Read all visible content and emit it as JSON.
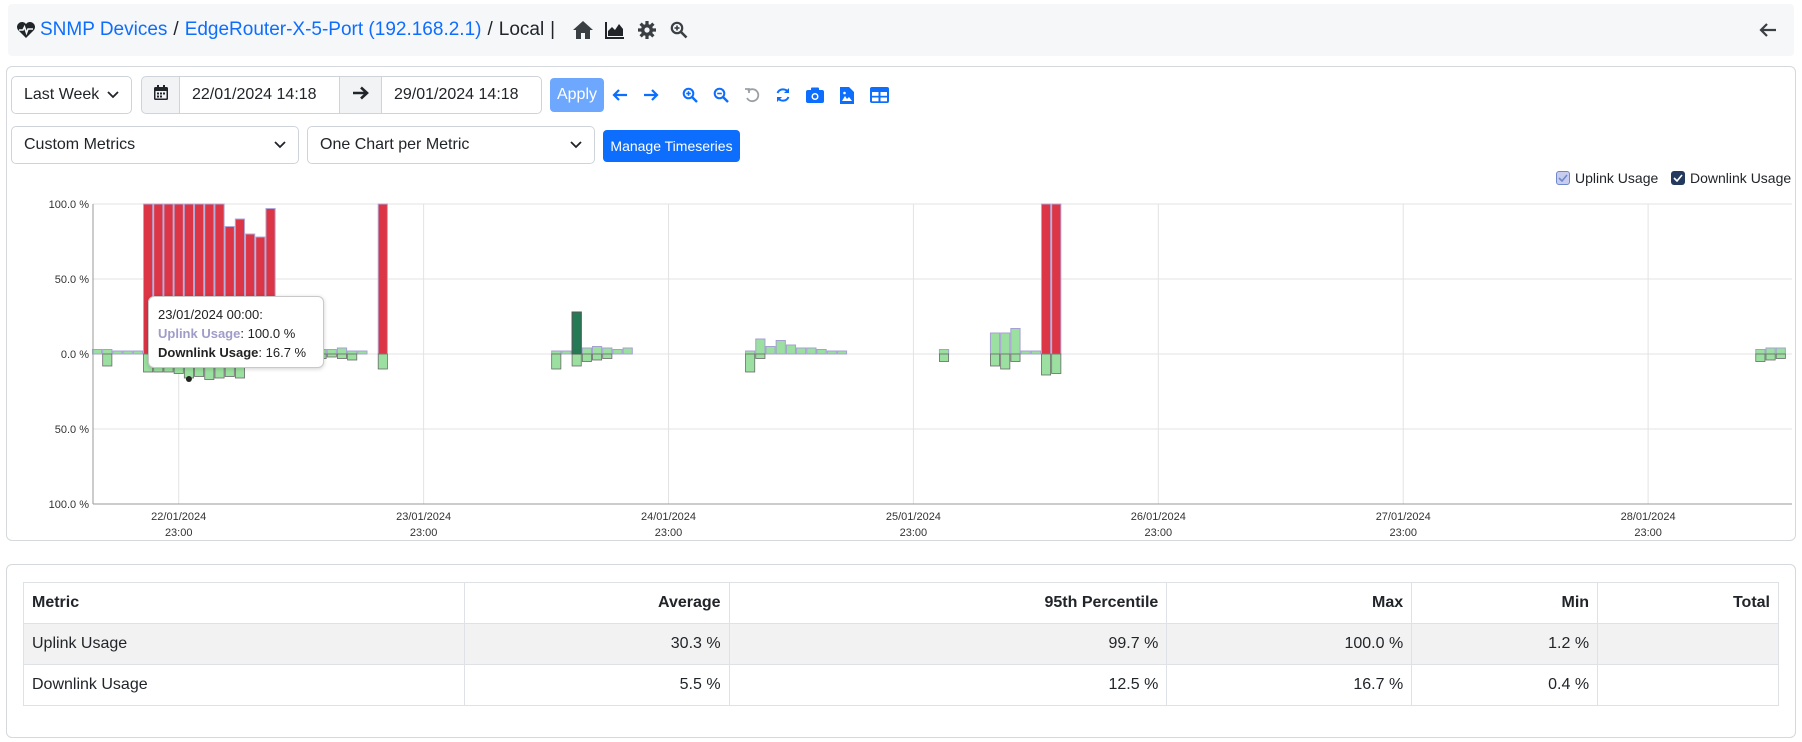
{
  "breadcrumb": {
    "root": "SNMP Devices",
    "device": "EdgeRouter-X-5-Port (192.168.2.1)",
    "interface": "Local",
    "sep": "/",
    "bar": "|"
  },
  "toolbar": {
    "range_preset": "Last Week",
    "start": "22/01/2024 14:18",
    "end": "29/01/2024 14:18",
    "apply_label": "Apply",
    "metrics_select": "Custom Metrics",
    "layout_select": "One Chart per Metric",
    "manage_label": "Manage Timeseries"
  },
  "colors": {
    "link": "#0d6efd",
    "uplink_bar": "#dc3545",
    "uplink_series": "#a4a1d2",
    "downlink_bar": "#9be0a0",
    "downlink_dark": "#237a55",
    "apply": "#6ea8fe"
  },
  "legend": {
    "uplink": "Uplink Usage",
    "downlink": "Downlink Usage"
  },
  "tooltip": {
    "time": "23/01/2024 00:00:",
    "uplink_name": "Uplink Usage",
    "uplink_value": ": 100.0 %",
    "downlink_name": "Downlink Usage",
    "downlink_value": ": 16.7 %"
  },
  "chart_data": {
    "type": "bar",
    "y_ticks": [
      "100.0 %",
      "50.0 %",
      "0.0 %",
      "50.0 %",
      "100.0 %"
    ],
    "x_ticks": [
      {
        "date": "22/01/2024",
        "time": "23:00"
      },
      {
        "date": "23/01/2024",
        "time": "23:00"
      },
      {
        "date": "24/01/2024",
        "time": "23:00"
      },
      {
        "date": "25/01/2024",
        "time": "23:00"
      },
      {
        "date": "26/01/2024",
        "time": "23:00"
      },
      {
        "date": "27/01/2024",
        "time": "23:00"
      },
      {
        "date": "28/01/2024",
        "time": "23:00"
      }
    ],
    "ylim": [
      -100,
      100
    ],
    "x_range_hours": [
      -8.4,
      158.1
    ],
    "uplink": [
      {
        "h": -8,
        "v": 3
      },
      {
        "h": -7,
        "v": 3
      },
      {
        "h": -6,
        "v": 2
      },
      {
        "h": -5,
        "v": 2
      },
      {
        "h": -4,
        "v": 2
      },
      {
        "h": -3,
        "v": 2
      },
      {
        "h": -3,
        "v": 100
      },
      {
        "h": -2,
        "v": 100
      },
      {
        "h": -1,
        "v": 100
      },
      {
        "h": 0,
        "v": 100
      },
      {
        "h": 1,
        "v": 100
      },
      {
        "h": 2,
        "v": 100
      },
      {
        "h": 3,
        "v": 100
      },
      {
        "h": 4,
        "v": 100
      },
      {
        "h": 5,
        "v": 85
      },
      {
        "h": 6,
        "v": 90
      },
      {
        "h": 7,
        "v": 80
      },
      {
        "h": 8,
        "v": 78
      },
      {
        "h": 9,
        "v": 97
      },
      {
        "h": 13,
        "v": 2
      },
      {
        "h": 14,
        "v": 3
      },
      {
        "h": 15,
        "v": 3
      },
      {
        "h": 16,
        "v": 4
      },
      {
        "h": 17,
        "v": 2
      },
      {
        "h": 18,
        "v": 2
      },
      {
        "h": 20,
        "v": 100
      },
      {
        "h": 37,
        "v": 2
      },
      {
        "h": 38,
        "v": 2
      },
      {
        "h": 39,
        "v": 28
      },
      {
        "h": 40,
        "v": 4
      },
      {
        "h": 41,
        "v": 5
      },
      {
        "h": 42,
        "v": 4
      },
      {
        "h": 43,
        "v": 3
      },
      {
        "h": 44,
        "v": 4
      },
      {
        "h": 56,
        "v": 2
      },
      {
        "h": 57,
        "v": 10
      },
      {
        "h": 58,
        "v": 5
      },
      {
        "h": 59,
        "v": 9
      },
      {
        "h": 60,
        "v": 6
      },
      {
        "h": 61,
        "v": 4
      },
      {
        "h": 62,
        "v": 4
      },
      {
        "h": 63,
        "v": 3
      },
      {
        "h": 64,
        "v": 2
      },
      {
        "h": 65,
        "v": 2
      },
      {
        "h": 75,
        "v": 3
      },
      {
        "h": 80,
        "v": 14
      },
      {
        "h": 81,
        "v": 14
      },
      {
        "h": 82,
        "v": 17
      },
      {
        "h": 83,
        "v": 2
      },
      {
        "h": 84,
        "v": 2
      },
      {
        "h": 85,
        "v": 100
      },
      {
        "h": 86,
        "v": 100
      },
      {
        "h": 155,
        "v": 3
      },
      {
        "h": 156,
        "v": 4
      },
      {
        "h": 157,
        "v": 4
      }
    ],
    "downlink": [
      {
        "h": -7,
        "v": -8
      },
      {
        "h": -3,
        "v": -12
      },
      {
        "h": -2,
        "v": -12
      },
      {
        "h": -1,
        "v": -12
      },
      {
        "h": 0,
        "v": -13
      },
      {
        "h": 1,
        "v": -16
      },
      {
        "h": 2,
        "v": -15
      },
      {
        "h": 3,
        "v": -17
      },
      {
        "h": 4,
        "v": -16
      },
      {
        "h": 5,
        "v": -15
      },
      {
        "h": 6,
        "v": -16
      },
      {
        "h": 14,
        "v": -3
      },
      {
        "h": 15,
        "v": -2
      },
      {
        "h": 16,
        "v": -3
      },
      {
        "h": 17,
        "v": -4
      },
      {
        "h": 20,
        "v": -10
      },
      {
        "h": 37,
        "v": -10
      },
      {
        "h": 39,
        "v": -8
      },
      {
        "h": 40,
        "v": -5
      },
      {
        "h": 41,
        "v": -4
      },
      {
        "h": 42,
        "v": -3
      },
      {
        "h": 56,
        "v": -12
      },
      {
        "h": 57,
        "v": -3
      },
      {
        "h": 75,
        "v": -5
      },
      {
        "h": 80,
        "v": -8
      },
      {
        "h": 81,
        "v": -10
      },
      {
        "h": 82,
        "v": -5
      },
      {
        "h": 85,
        "v": -14
      },
      {
        "h": 86,
        "v": -13
      },
      {
        "h": 155,
        "v": -5
      },
      {
        "h": 156,
        "v": -4
      },
      {
        "h": 157,
        "v": -3
      }
    ],
    "highlight_downlink_h": 39
  },
  "stats": {
    "headers": [
      "Metric",
      "Average",
      "95th Percentile",
      "Max",
      "Min",
      "Total"
    ],
    "rows": [
      {
        "metric": "Uplink Usage",
        "average": "30.3 %",
        "p95": "99.7 %",
        "max": "100.0 %",
        "min": "1.2 %",
        "total": ""
      },
      {
        "metric": "Downlink Usage",
        "average": "5.5 %",
        "p95": "12.5 %",
        "max": "16.7 %",
        "min": "0.4 %",
        "total": ""
      }
    ]
  }
}
